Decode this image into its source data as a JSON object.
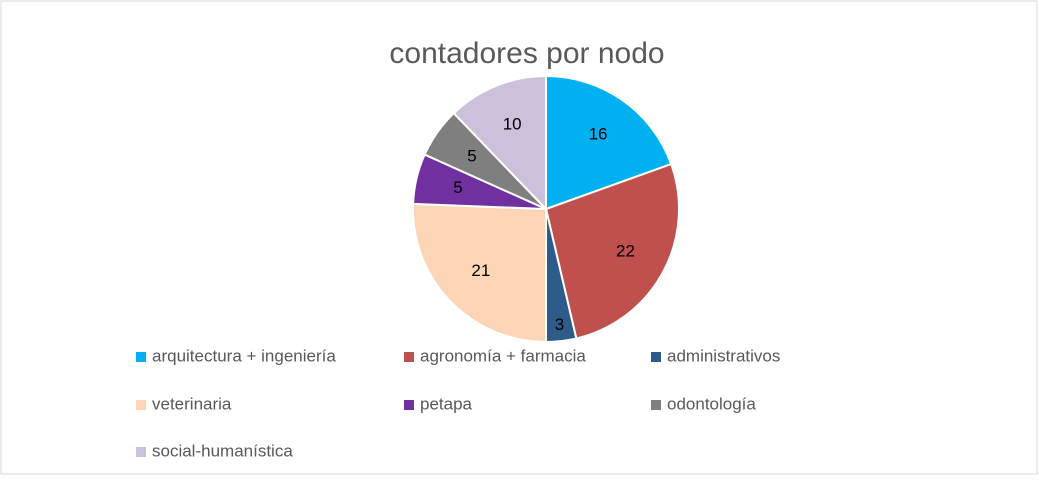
{
  "chart_data": {
    "type": "pie",
    "title": "contadores por nodo",
    "categories": [
      "arquitectura + ingeniería",
      "agronomía + farmacia",
      "administrativos",
      "veterinaria",
      "petapa",
      "odontología",
      "social-humanística"
    ],
    "values": [
      16,
      22,
      3,
      21,
      5,
      5,
      10
    ],
    "colors": [
      "#00b0f0",
      "#c0504d",
      "#2e5c8a",
      "#fbd5b5",
      "#7030a0",
      "#7f7f7f",
      "#ccc0da"
    ],
    "legend": "bottom"
  }
}
